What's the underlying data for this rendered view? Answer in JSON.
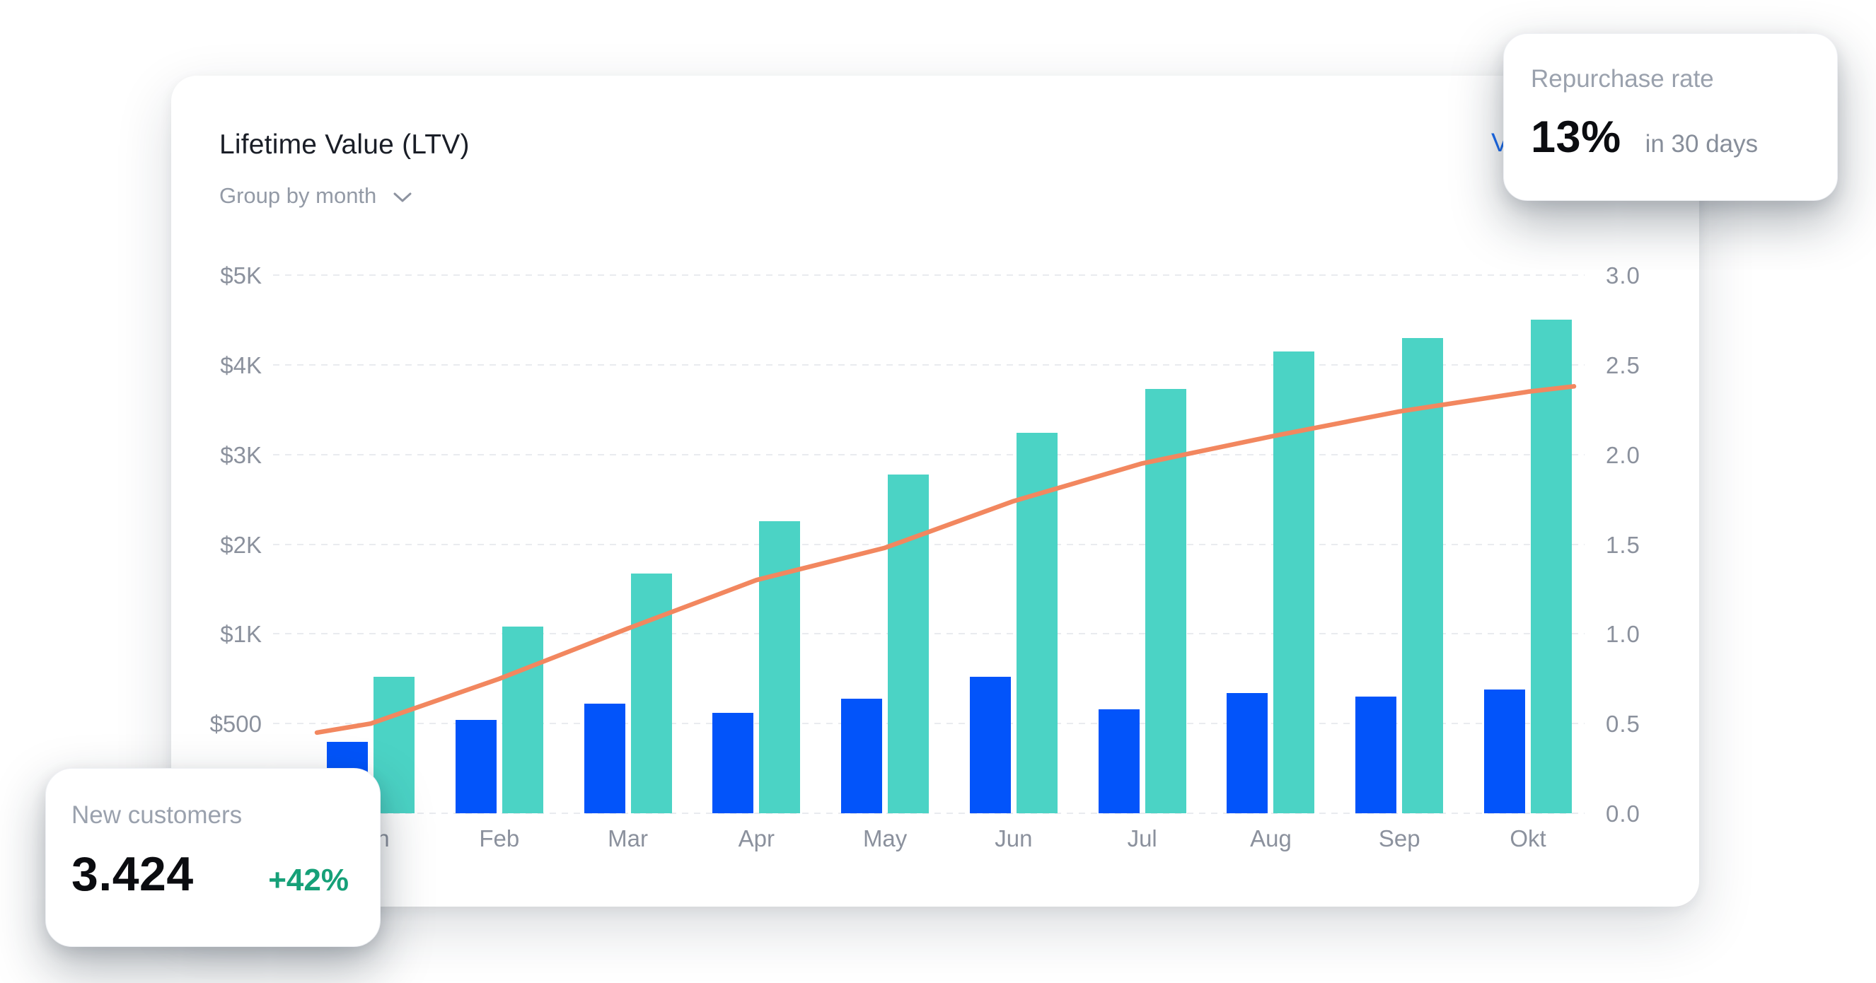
{
  "header": {
    "title": "Lifetime Value (LTV)",
    "group_by_label": "Group by month",
    "view_link_fragment": "V"
  },
  "floating_cards": {
    "repurchase": {
      "label": "Repurchase rate",
      "value": "13%",
      "suffix": "in 30 days"
    },
    "new_customers": {
      "label": "New customers",
      "value": "3.424",
      "delta": "+42%"
    }
  },
  "chart_data": {
    "type": "bar",
    "subtype": "grouped bars with overlay line",
    "title": "Lifetime Value (LTV)",
    "group_by": "month",
    "categories": [
      "Jan",
      "Feb",
      "Mar",
      "Apr",
      "May",
      "Jun",
      "Jul",
      "Aug",
      "Sep",
      "Okt"
    ],
    "series": [
      {
        "name": "ltv-teal-bars",
        "type": "bar",
        "axis": "left",
        "color": "#4bd3c5",
        "values": [
          760,
          1080,
          1670,
          2260,
          2780,
          3240,
          3730,
          4150,
          4300,
          4500
        ]
      },
      {
        "name": "secondary-blue-bars",
        "type": "bar",
        "axis": "left",
        "color": "#0254fa",
        "values": [
          400,
          520,
          610,
          560,
          640,
          760,
          580,
          670,
          650,
          690
        ]
      },
      {
        "name": "trend-line",
        "type": "line",
        "axis": "right",
        "color": "#f2875f",
        "values": [
          0.5,
          0.75,
          1.03,
          1.3,
          1.48,
          1.74,
          1.95,
          2.1,
          2.24,
          2.35
        ],
        "edge_start": 0.45,
        "edge_end": 2.38
      }
    ],
    "left_axis": {
      "ticks": [
        "$5K",
        "$4K",
        "$3K",
        "$2K",
        "$1K",
        "$500"
      ],
      "tick_values": [
        5000,
        4000,
        3000,
        2000,
        1000,
        500
      ],
      "scale": "piecewise-equal-steps: 0,500,1K,2K,3K,4K,5K"
    },
    "right_axis": {
      "ticks": [
        "3.0",
        "2.5",
        "2.0",
        "1.5",
        "1.0",
        "0.5",
        "0.0"
      ],
      "min": 0,
      "max": 3
    },
    "grid": "dashed horizontal lines",
    "grid_color": "#e9ebef",
    "legend": "none"
  },
  "colors": {
    "teal_bar": "#4bd3c5",
    "blue_bar": "#0254fa",
    "orange_line": "#f2875f",
    "green_delta": "#16a078",
    "link_blue": "#1b6cf0",
    "axis_text": "#8b919d",
    "title_text": "#1a1e27"
  }
}
